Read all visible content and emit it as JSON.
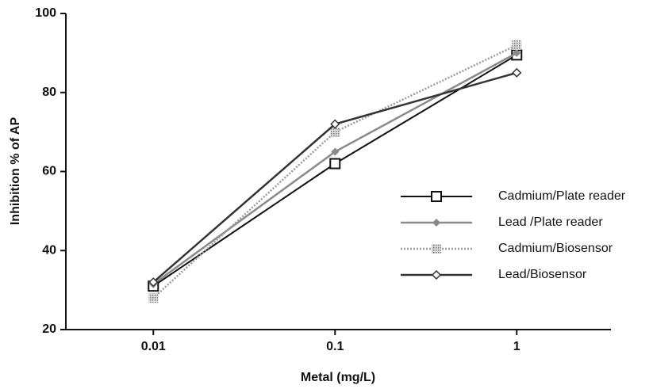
{
  "chart_data": {
    "type": "line",
    "x_label": "Metal (mg/L)",
    "y_label": "Inhibition % of AP",
    "x": [
      0.01,
      0.1,
      1
    ],
    "xscale": "log",
    "xlim": [
      0.0033,
      3.3
    ],
    "xticks": [
      0.01,
      0.1,
      1
    ],
    "ylim": [
      20,
      100
    ],
    "yticks": [
      20,
      40,
      60,
      80,
      100
    ],
    "legend": "center right",
    "series": [
      {
        "name": "Cadmium/Plate reader",
        "color": "#111111",
        "dash": "solid",
        "marker": "square",
        "values": [
          31,
          62,
          89.5
        ]
      },
      {
        "name": "Lead /Plate reader",
        "color": "#8a8a8a",
        "dash": "solid",
        "marker": "diamond",
        "values": [
          31.5,
          65,
          90
        ]
      },
      {
        "name": "Cadmium/Biosensor",
        "color": "#9a9a9a",
        "dash": "dotted",
        "marker": "hatched-square",
        "values": [
          28,
          70,
          92
        ]
      },
      {
        "name": "Lead/Biosensor",
        "color": "#333333",
        "dash": "solid",
        "marker": "open-diamond",
        "values": [
          32,
          72,
          85
        ]
      }
    ]
  }
}
